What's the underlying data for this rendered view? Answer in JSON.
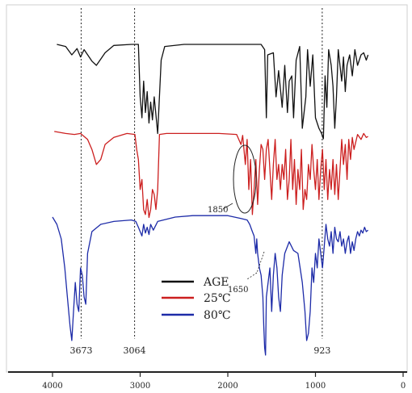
{
  "chart_data": {
    "type": "line",
    "xlim": [
      4000,
      0
    ],
    "x_ticks": [
      4000,
      3000,
      2000,
      1000,
      0
    ],
    "grid": false,
    "legend_position": "bottom-center",
    "series": [
      {
        "name": "AGE",
        "color": "#111111",
        "points": [
          [
            3950,
            0.9
          ],
          [
            3850,
            0.88
          ],
          [
            3780,
            0.8
          ],
          [
            3720,
            0.86
          ],
          [
            3680,
            0.78
          ],
          [
            3640,
            0.85
          ],
          [
            3550,
            0.74
          ],
          [
            3500,
            0.7
          ],
          [
            3450,
            0.76
          ],
          [
            3400,
            0.82
          ],
          [
            3300,
            0.89
          ],
          [
            3100,
            0.9
          ],
          [
            3020,
            0.9
          ],
          [
            3000,
            0.4
          ],
          [
            2980,
            0.2
          ],
          [
            2960,
            0.55
          ],
          [
            2940,
            0.25
          ],
          [
            2920,
            0.45
          ],
          [
            2900,
            0.15
          ],
          [
            2880,
            0.35
          ],
          [
            2860,
            0.18
          ],
          [
            2840,
            0.4
          ],
          [
            2800,
            0.05
          ],
          [
            2760,
            0.75
          ],
          [
            2720,
            0.88
          ],
          [
            2500,
            0.9
          ],
          [
            2000,
            0.9
          ],
          [
            1700,
            0.9
          ],
          [
            1620,
            0.9
          ],
          [
            1580,
            0.85
          ],
          [
            1560,
            0.2
          ],
          [
            1545,
            0.8
          ],
          [
            1480,
            0.82
          ],
          [
            1450,
            0.4
          ],
          [
            1420,
            0.65
          ],
          [
            1380,
            0.3
          ],
          [
            1350,
            0.7
          ],
          [
            1320,
            0.25
          ],
          [
            1300,
            0.55
          ],
          [
            1270,
            0.6
          ],
          [
            1250,
            0.2
          ],
          [
            1220,
            0.75
          ],
          [
            1180,
            0.88
          ],
          [
            1150,
            0.1
          ],
          [
            1110,
            0.4
          ],
          [
            1090,
            0.85
          ],
          [
            1060,
            0.5
          ],
          [
            1030,
            0.8
          ],
          [
            1000,
            0.2
          ],
          [
            960,
            0.1
          ],
          [
            930,
            0.05
          ],
          [
            910,
            0.0
          ],
          [
            890,
            0.6
          ],
          [
            870,
            0.3
          ],
          [
            850,
            0.85
          ],
          [
            820,
            0.7
          ],
          [
            800,
            0.5
          ],
          [
            780,
            0.1
          ],
          [
            760,
            0.4
          ],
          [
            740,
            0.85
          ],
          [
            700,
            0.55
          ],
          [
            680,
            0.78
          ],
          [
            660,
            0.45
          ],
          [
            640,
            0.7
          ],
          [
            610,
            0.8
          ],
          [
            580,
            0.6
          ],
          [
            550,
            0.85
          ],
          [
            520,
            0.7
          ],
          [
            480,
            0.8
          ],
          [
            450,
            0.82
          ],
          [
            420,
            0.75
          ],
          [
            400,
            0.8
          ]
        ]
      },
      {
        "name": "25℃",
        "color": "#cc1f1f",
        "points": [
          [
            3980,
            0.88
          ],
          [
            3850,
            0.86
          ],
          [
            3750,
            0.85
          ],
          [
            3680,
            0.86
          ],
          [
            3600,
            0.8
          ],
          [
            3550,
            0.7
          ],
          [
            3500,
            0.55
          ],
          [
            3450,
            0.6
          ],
          [
            3400,
            0.75
          ],
          [
            3300,
            0.82
          ],
          [
            3150,
            0.86
          ],
          [
            3060,
            0.85
          ],
          [
            3040,
            0.7
          ],
          [
            3020,
            0.6
          ],
          [
            3000,
            0.3
          ],
          [
            2980,
            0.4
          ],
          [
            2960,
            0.1
          ],
          [
            2940,
            0.05
          ],
          [
            2920,
            0.2
          ],
          [
            2900,
            0.02
          ],
          [
            2880,
            0.1
          ],
          [
            2860,
            0.3
          ],
          [
            2840,
            0.25
          ],
          [
            2820,
            0.1
          ],
          [
            2800,
            0.3
          ],
          [
            2780,
            0.85
          ],
          [
            2700,
            0.86
          ],
          [
            2400,
            0.86
          ],
          [
            2100,
            0.86
          ],
          [
            1900,
            0.85
          ],
          [
            1850,
            0.75
          ],
          [
            1830,
            0.84
          ],
          [
            1800,
            0.55
          ],
          [
            1780,
            0.8
          ],
          [
            1760,
            0.3
          ],
          [
            1740,
            0.6
          ],
          [
            1720,
            0.05
          ],
          [
            1700,
            0.3
          ],
          [
            1680,
            0.6
          ],
          [
            1660,
            0.15
          ],
          [
            1640,
            0.5
          ],
          [
            1620,
            0.75
          ],
          [
            1600,
            0.7
          ],
          [
            1580,
            0.4
          ],
          [
            1560,
            0.7
          ],
          [
            1540,
            0.8
          ],
          [
            1520,
            0.5
          ],
          [
            1500,
            0.2
          ],
          [
            1480,
            0.55
          ],
          [
            1460,
            0.8
          ],
          [
            1440,
            0.4
          ],
          [
            1420,
            0.55
          ],
          [
            1400,
            0.3
          ],
          [
            1380,
            0.55
          ],
          [
            1360,
            0.4
          ],
          [
            1340,
            0.7
          ],
          [
            1320,
            0.2
          ],
          [
            1300,
            0.4
          ],
          [
            1280,
            0.8
          ],
          [
            1260,
            0.3
          ],
          [
            1240,
            0.6
          ],
          [
            1220,
            0.15
          ],
          [
            1200,
            0.5
          ],
          [
            1180,
            0.3
          ],
          [
            1160,
            0.7
          ],
          [
            1140,
            0.1
          ],
          [
            1120,
            0.3
          ],
          [
            1100,
            0.2
          ],
          [
            1080,
            0.55
          ],
          [
            1060,
            0.4
          ],
          [
            1040,
            0.75
          ],
          [
            1020,
            0.5
          ],
          [
            1000,
            0.3
          ],
          [
            980,
            0.6
          ],
          [
            960,
            0.2
          ],
          [
            940,
            0.5
          ],
          [
            920,
            0.7
          ],
          [
            900,
            0.3
          ],
          [
            880,
            0.6
          ],
          [
            860,
            0.2
          ],
          [
            840,
            0.5
          ],
          [
            820,
            0.3
          ],
          [
            800,
            0.6
          ],
          [
            780,
            0.25
          ],
          [
            760,
            0.55
          ],
          [
            740,
            0.2
          ],
          [
            720,
            0.5
          ],
          [
            700,
            0.8
          ],
          [
            680,
            0.55
          ],
          [
            660,
            0.75
          ],
          [
            640,
            0.4
          ],
          [
            620,
            0.8
          ],
          [
            600,
            0.6
          ],
          [
            580,
            0.82
          ],
          [
            560,
            0.7
          ],
          [
            520,
            0.85
          ],
          [
            480,
            0.8
          ],
          [
            450,
            0.86
          ],
          [
            420,
            0.82
          ],
          [
            400,
            0.83
          ]
        ]
      },
      {
        "name": "80℃",
        "color": "#1d2ba8",
        "points": [
          [
            4000,
            0.95
          ],
          [
            3950,
            0.9
          ],
          [
            3900,
            0.8
          ],
          [
            3860,
            0.6
          ],
          [
            3830,
            0.4
          ],
          [
            3800,
            0.2
          ],
          [
            3780,
            0.1
          ],
          [
            3760,
            0.3
          ],
          [
            3740,
            0.5
          ],
          [
            3720,
            0.35
          ],
          [
            3700,
            0.3
          ],
          [
            3680,
            0.6
          ],
          [
            3660,
            0.55
          ],
          [
            3640,
            0.4
          ],
          [
            3620,
            0.35
          ],
          [
            3600,
            0.7
          ],
          [
            3550,
            0.85
          ],
          [
            3450,
            0.9
          ],
          [
            3300,
            0.92
          ],
          [
            3100,
            0.93
          ],
          [
            3050,
            0.92
          ],
          [
            3020,
            0.88
          ],
          [
            3000,
            0.85
          ],
          [
            2980,
            0.82
          ],
          [
            2960,
            0.9
          ],
          [
            2940,
            0.84
          ],
          [
            2920,
            0.88
          ],
          [
            2900,
            0.83
          ],
          [
            2880,
            0.9
          ],
          [
            2850,
            0.86
          ],
          [
            2800,
            0.92
          ],
          [
            2600,
            0.95
          ],
          [
            2400,
            0.96
          ],
          [
            2200,
            0.96
          ],
          [
            2000,
            0.96
          ],
          [
            1850,
            0.94
          ],
          [
            1780,
            0.93
          ],
          [
            1750,
            0.9
          ],
          [
            1720,
            0.85
          ],
          [
            1700,
            0.82
          ],
          [
            1680,
            0.7
          ],
          [
            1670,
            0.8
          ],
          [
            1660,
            0.7
          ],
          [
            1640,
            0.6
          ],
          [
            1620,
            0.55
          ],
          [
            1600,
            0.4
          ],
          [
            1590,
            0.2
          ],
          [
            1580,
            0.05
          ],
          [
            1570,
            0.0
          ],
          [
            1560,
            0.4
          ],
          [
            1540,
            0.5
          ],
          [
            1520,
            0.6
          ],
          [
            1500,
            0.3
          ],
          [
            1480,
            0.55
          ],
          [
            1460,
            0.7
          ],
          [
            1440,
            0.6
          ],
          [
            1420,
            0.4
          ],
          [
            1400,
            0.3
          ],
          [
            1380,
            0.55
          ],
          [
            1350,
            0.7
          ],
          [
            1300,
            0.78
          ],
          [
            1250,
            0.72
          ],
          [
            1200,
            0.7
          ],
          [
            1150,
            0.5
          ],
          [
            1120,
            0.3
          ],
          [
            1100,
            0.1
          ],
          [
            1080,
            0.15
          ],
          [
            1060,
            0.3
          ],
          [
            1040,
            0.6
          ],
          [
            1020,
            0.5
          ],
          [
            1000,
            0.7
          ],
          [
            980,
            0.6
          ],
          [
            960,
            0.8
          ],
          [
            940,
            0.7
          ],
          [
            920,
            0.6
          ],
          [
            900,
            0.75
          ],
          [
            880,
            0.9
          ],
          [
            860,
            0.8
          ],
          [
            840,
            0.75
          ],
          [
            820,
            0.85
          ],
          [
            800,
            0.7
          ],
          [
            780,
            0.88
          ],
          [
            760,
            0.8
          ],
          [
            740,
            0.78
          ],
          [
            720,
            0.85
          ],
          [
            700,
            0.75
          ],
          [
            680,
            0.8
          ],
          [
            660,
            0.7
          ],
          [
            640,
            0.78
          ],
          [
            620,
            0.82
          ],
          [
            600,
            0.7
          ],
          [
            580,
            0.78
          ],
          [
            560,
            0.72
          ],
          [
            540,
            0.8
          ],
          [
            520,
            0.85
          ],
          [
            500,
            0.82
          ],
          [
            480,
            0.86
          ],
          [
            460,
            0.84
          ],
          [
            440,
            0.88
          ],
          [
            420,
            0.85
          ],
          [
            400,
            0.86
          ]
        ]
      }
    ],
    "reference_lines": [
      {
        "x": 3673,
        "label": "3673"
      },
      {
        "x": 3064,
        "label": "3064"
      },
      {
        "x": 923,
        "label": "923"
      }
    ],
    "annotations": [
      {
        "text": "1850",
        "x": 1850
      },
      {
        "text": "1650",
        "x": 1650
      }
    ]
  }
}
